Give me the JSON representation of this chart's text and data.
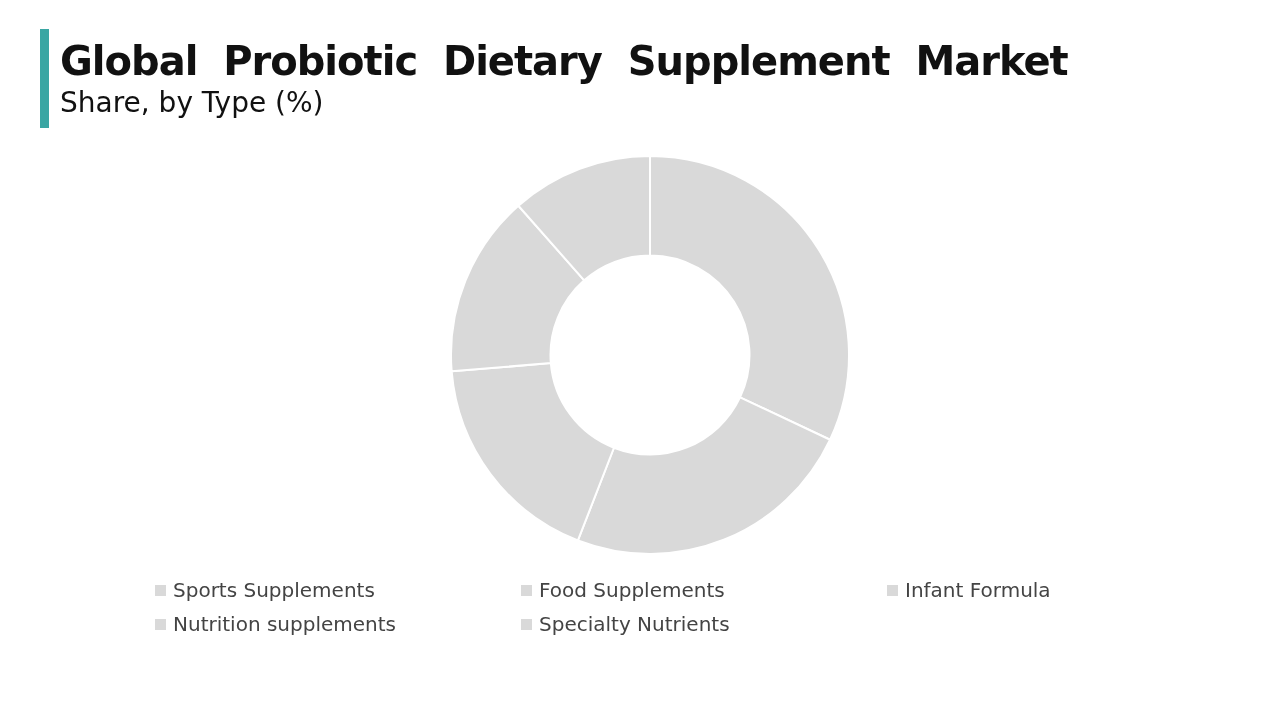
{
  "chart_data": {
    "type": "donut",
    "title": "Global  Probiotic  Dietary  Supplement  Market",
    "subtitle": "Share, by Type (%)",
    "categories": [
      "Sports Supplements",
      "Food Supplements",
      "Infant Formula",
      "Nutrition supplements",
      "Specialty Nutrients"
    ],
    "values": [
      32.0,
      23.9,
      17.8,
      14.8,
      11.5
    ],
    "colors": [
      "#d9d9d9",
      "#d9d9d9",
      "#d9d9d9",
      "#d9d9d9",
      "#d9d9d9"
    ],
    "legend": "bottom"
  }
}
